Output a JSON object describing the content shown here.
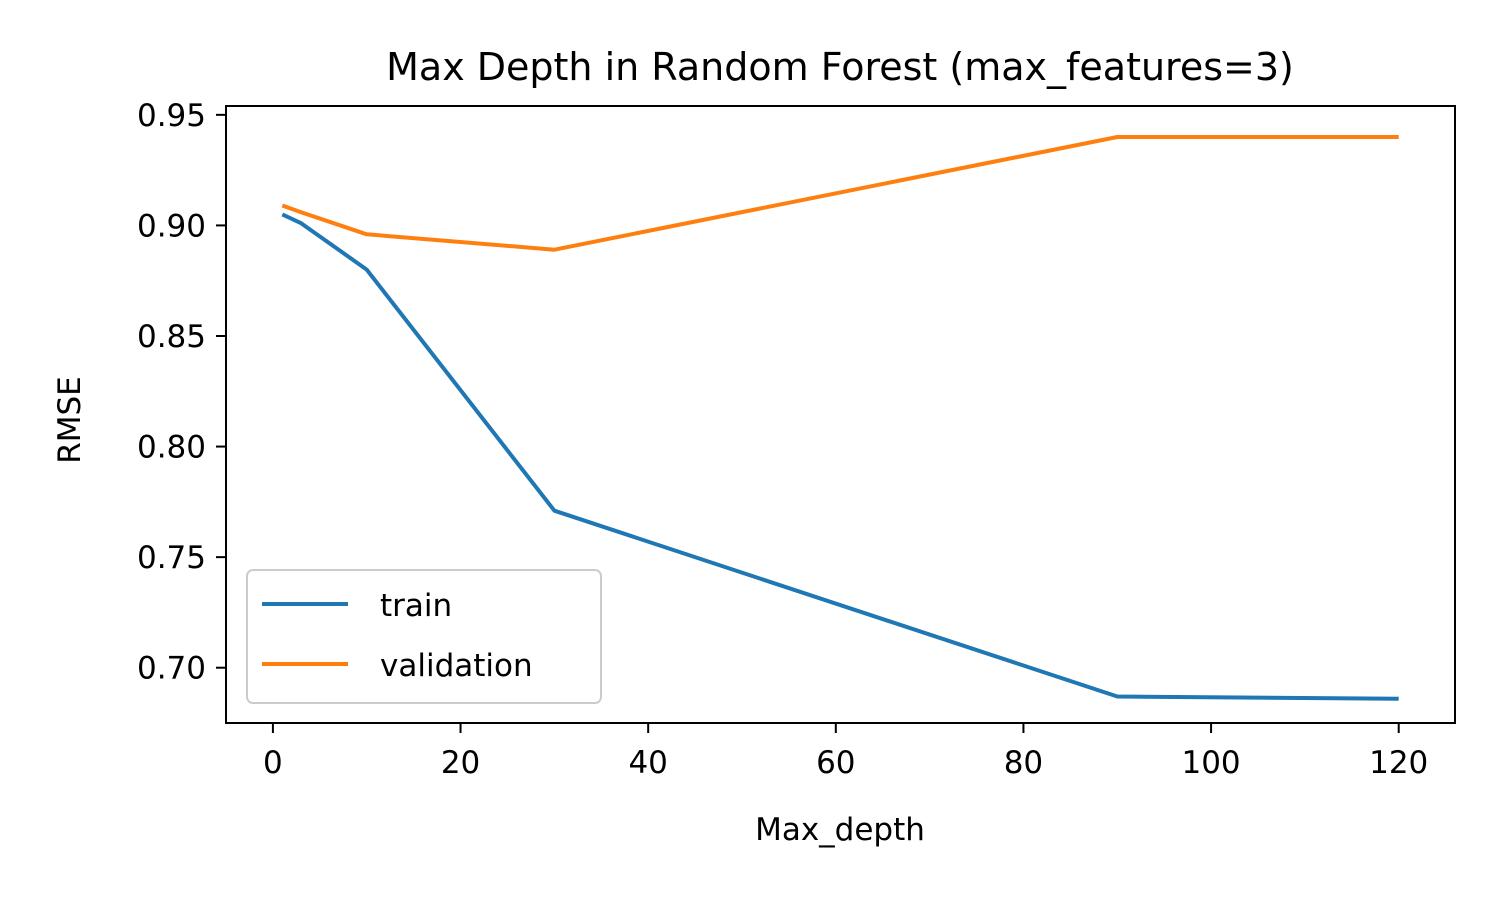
{
  "chart_data": {
    "type": "line",
    "title": "Max Depth in Random Forest (max_features=3)",
    "xlabel": "Max_depth",
    "ylabel": "RMSE",
    "xlim": [
      -5,
      126
    ],
    "ylim": [
      0.675,
      0.954
    ],
    "xticks": [
      0,
      20,
      40,
      60,
      80,
      100,
      120
    ],
    "xtick_labels": [
      "0",
      "20",
      "40",
      "60",
      "80",
      "100",
      "120"
    ],
    "yticks": [
      0.7,
      0.75,
      0.8,
      0.85,
      0.9,
      0.95
    ],
    "ytick_labels": [
      "0.70",
      "0.75",
      "0.80",
      "0.85",
      "0.90",
      "0.95"
    ],
    "grid": false,
    "legend_position": "lower-left",
    "x": [
      1,
      3,
      10,
      30,
      90,
      120
    ],
    "series": [
      {
        "name": "train",
        "color": "#1f77b4",
        "values": [
          0.905,
          0.901,
          0.88,
          0.771,
          0.687,
          0.686
        ]
      },
      {
        "name": "validation",
        "color": "#ff7f0e",
        "values": [
          0.909,
          0.906,
          0.896,
          0.889,
          0.94,
          0.94
        ]
      }
    ]
  }
}
